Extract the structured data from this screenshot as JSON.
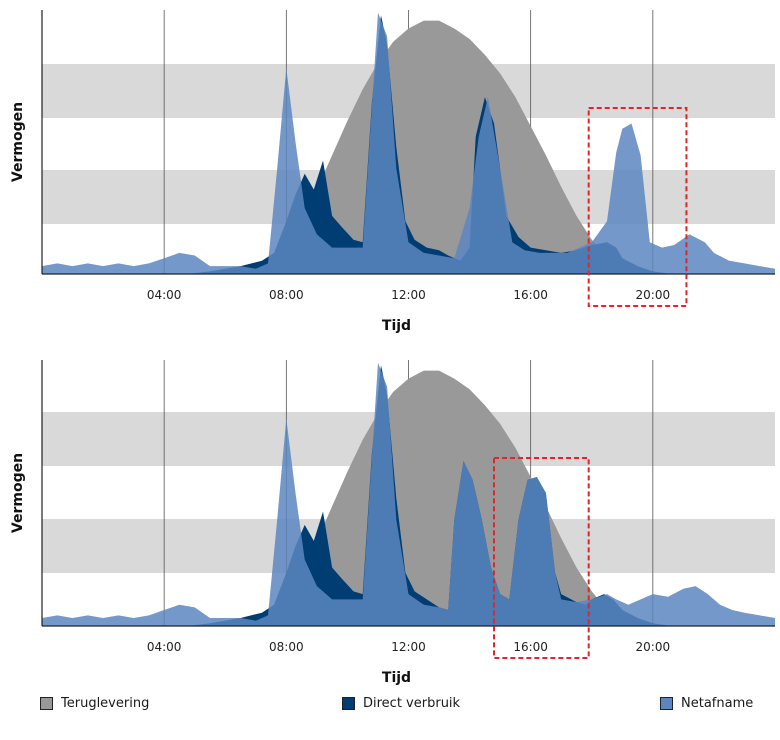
{
  "colors": {
    "background": "#ffffff",
    "band": "#d9d9d9",
    "terug": "#999999",
    "direct": "#003d73",
    "net": "#5b86bf",
    "highlight": "#e0262c"
  },
  "legend": [
    {
      "label": "Teruglevering",
      "color": "#999999"
    },
    {
      "label": "Direct verbruik",
      "color": "#003d73"
    },
    {
      "label": "Netafname",
      "color": "#5b86bf"
    }
  ],
  "chart_data": [
    {
      "type": "area",
      "xlabel": "Tijd",
      "ylabel": "Vermogen",
      "x_unit": "hours",
      "xlim": [
        0,
        24
      ],
      "ylim": [
        0,
        100
      ],
      "x_ticks": [
        "04:00",
        "08:00",
        "12:00",
        "16:00",
        "20:00"
      ],
      "x_tick_values": [
        4,
        8,
        12,
        16,
        20
      ],
      "grid": "vertical lines at ticks, alternating horizontal grey bands",
      "highlight_hours": [
        17.9,
        21.1
      ],
      "series": [
        {
          "name": "Teruglevering",
          "color": "#999999",
          "points": [
            [
              7.0,
              0
            ],
            [
              7.6,
              3
            ],
            [
              8.0,
              9
            ],
            [
              8.5,
              20
            ],
            [
              9.0,
              32
            ],
            [
              9.5,
              45
            ],
            [
              10.0,
              58
            ],
            [
              10.5,
              70
            ],
            [
              11.0,
              80
            ],
            [
              11.5,
              88
            ],
            [
              12.0,
              93
            ],
            [
              12.5,
              96
            ],
            [
              13.0,
              96
            ],
            [
              13.5,
              93
            ],
            [
              14.0,
              89
            ],
            [
              14.5,
              83
            ],
            [
              15.0,
              76
            ],
            [
              15.5,
              67
            ],
            [
              16.0,
              56
            ],
            [
              16.5,
              45
            ],
            [
              17.0,
              33
            ],
            [
              17.5,
              22
            ],
            [
              18.0,
              13
            ],
            [
              18.5,
              6
            ],
            [
              19.0,
              2
            ],
            [
              19.5,
              0
            ]
          ]
        },
        {
          "name": "Direct verbruik",
          "color": "#003d73",
          "points": [
            [
              4.8,
              0
            ],
            [
              5.5,
              1
            ],
            [
              6.5,
              3
            ],
            [
              7.2,
              5
            ],
            [
              7.6,
              8
            ],
            [
              8.0,
              20
            ],
            [
              8.3,
              30
            ],
            [
              8.6,
              38
            ],
            [
              8.9,
              32
            ],
            [
              9.2,
              43
            ],
            [
              9.5,
              22
            ],
            [
              9.8,
              18
            ],
            [
              10.2,
              13
            ],
            [
              10.5,
              12
            ],
            [
              10.8,
              65
            ],
            [
              11.1,
              98
            ],
            [
              11.3,
              87
            ],
            [
              11.6,
              48
            ],
            [
              11.9,
              20
            ],
            [
              12.2,
              13
            ],
            [
              12.6,
              10
            ],
            [
              13.0,
              9
            ],
            [
              13.3,
              7
            ],
            [
              13.7,
              5
            ],
            [
              14.0,
              10
            ],
            [
              14.2,
              52
            ],
            [
              14.5,
              67
            ],
            [
              14.8,
              57
            ],
            [
              15.0,
              40
            ],
            [
              15.2,
              22
            ],
            [
              15.6,
              14
            ],
            [
              16.0,
              10
            ],
            [
              16.5,
              9
            ],
            [
              17.0,
              8
            ],
            [
              17.5,
              9
            ],
            [
              18.0,
              11
            ],
            [
              18.5,
              12
            ],
            [
              18.8,
              10
            ],
            [
              19.0,
              6
            ],
            [
              19.5,
              3
            ],
            [
              20.0,
              1
            ],
            [
              20.6,
              0
            ]
          ]
        },
        {
          "name": "Netafname",
          "color": "#5b86bf",
          "points": [
            [
              0,
              3
            ],
            [
              0.5,
              4
            ],
            [
              1.0,
              3
            ],
            [
              1.5,
              4
            ],
            [
              2.0,
              3
            ],
            [
              2.5,
              4
            ],
            [
              3.0,
              3
            ],
            [
              3.5,
              4
            ],
            [
              4.0,
              6
            ],
            [
              4.5,
              8
            ],
            [
              5.0,
              7
            ],
            [
              5.5,
              3
            ],
            [
              6.0,
              3
            ],
            [
              6.5,
              3
            ],
            [
              7.0,
              2
            ],
            [
              7.4,
              4
            ],
            [
              7.7,
              40
            ],
            [
              8.0,
              78
            ],
            [
              8.3,
              50
            ],
            [
              8.6,
              25
            ],
            [
              9.0,
              15
            ],
            [
              9.5,
              10
            ],
            [
              10.0,
              10
            ],
            [
              10.5,
              10
            ],
            [
              11.0,
              99
            ],
            [
              11.3,
              90
            ],
            [
              11.6,
              40
            ],
            [
              12.0,
              12
            ],
            [
              12.5,
              8
            ],
            [
              13.0,
              7
            ],
            [
              13.5,
              6
            ],
            [
              14.0,
              25
            ],
            [
              14.3,
              52
            ],
            [
              14.6,
              67
            ],
            [
              15.0,
              40
            ],
            [
              15.4,
              12
            ],
            [
              15.8,
              9
            ],
            [
              16.3,
              8
            ],
            [
              16.8,
              8
            ],
            [
              17.2,
              8
            ],
            [
              17.6,
              10
            ],
            [
              18.0,
              12
            ],
            [
              18.5,
              20
            ],
            [
              18.8,
              46
            ],
            [
              19.0,
              55
            ],
            [
              19.3,
              57
            ],
            [
              19.6,
              45
            ],
            [
              19.9,
              12
            ],
            [
              20.3,
              10
            ],
            [
              20.7,
              11
            ],
            [
              21.2,
              15
            ],
            [
              21.7,
              12
            ],
            [
              22.0,
              8
            ],
            [
              22.5,
              5
            ],
            [
              23.0,
              4
            ],
            [
              23.5,
              3
            ],
            [
              24.0,
              2
            ]
          ]
        }
      ]
    },
    {
      "type": "area",
      "xlabel": "Tijd",
      "ylabel": "Vermogen",
      "x_unit": "hours",
      "xlim": [
        0,
        24
      ],
      "ylim": [
        0,
        100
      ],
      "x_ticks": [
        "04:00",
        "08:00",
        "12:00",
        "16:00",
        "20:00"
      ],
      "x_tick_values": [
        4,
        8,
        12,
        16,
        20
      ],
      "grid": "vertical lines at ticks, alternating horizontal grey bands",
      "highlight_hours": [
        14.8,
        17.9
      ],
      "series": [
        {
          "name": "Teruglevering",
          "color": "#999999",
          "points": [
            [
              7.0,
              0
            ],
            [
              7.6,
              3
            ],
            [
              8.0,
              9
            ],
            [
              8.5,
              20
            ],
            [
              9.0,
              32
            ],
            [
              9.5,
              45
            ],
            [
              10.0,
              58
            ],
            [
              10.5,
              70
            ],
            [
              11.0,
              80
            ],
            [
              11.5,
              88
            ],
            [
              12.0,
              93
            ],
            [
              12.5,
              96
            ],
            [
              13.0,
              96
            ],
            [
              13.5,
              93
            ],
            [
              14.0,
              89
            ],
            [
              14.5,
              83
            ],
            [
              15.0,
              76
            ],
            [
              15.5,
              67
            ],
            [
              16.0,
              56
            ],
            [
              16.5,
              45
            ],
            [
              17.0,
              33
            ],
            [
              17.5,
              22
            ],
            [
              18.0,
              13
            ],
            [
              18.5,
              6
            ],
            [
              19.0,
              2
            ],
            [
              19.5,
              0
            ]
          ]
        },
        {
          "name": "Direct verbruik",
          "color": "#003d73",
          "points": [
            [
              4.8,
              0
            ],
            [
              5.5,
              1
            ],
            [
              6.5,
              3
            ],
            [
              7.2,
              5
            ],
            [
              7.6,
              8
            ],
            [
              8.0,
              20
            ],
            [
              8.3,
              30
            ],
            [
              8.6,
              38
            ],
            [
              8.9,
              32
            ],
            [
              9.2,
              43
            ],
            [
              9.5,
              22
            ],
            [
              9.8,
              18
            ],
            [
              10.2,
              13
            ],
            [
              10.5,
              12
            ],
            [
              10.8,
              65
            ],
            [
              11.1,
              98
            ],
            [
              11.3,
              87
            ],
            [
              11.6,
              48
            ],
            [
              11.9,
              20
            ],
            [
              12.2,
              13
            ],
            [
              12.6,
              10
            ],
            [
              13.0,
              7
            ],
            [
              13.3,
              6
            ],
            [
              13.5,
              40
            ],
            [
              13.8,
              62
            ],
            [
              14.1,
              55
            ],
            [
              14.4,
              40
            ],
            [
              14.7,
              22
            ],
            [
              15.0,
              12
            ],
            [
              15.3,
              10
            ],
            [
              15.6,
              40
            ],
            [
              15.9,
              55
            ],
            [
              16.2,
              56
            ],
            [
              16.5,
              50
            ],
            [
              16.8,
              20
            ],
            [
              17.0,
              12
            ],
            [
              17.5,
              9
            ],
            [
              17.8,
              8
            ],
            [
              18.0,
              10
            ],
            [
              18.4,
              12
            ],
            [
              18.7,
              10
            ],
            [
              19.0,
              6
            ],
            [
              19.5,
              3
            ],
            [
              20.0,
              1
            ],
            [
              20.6,
              0
            ]
          ]
        },
        {
          "name": "Netafname",
          "color": "#5b86bf",
          "points": [
            [
              0,
              3
            ],
            [
              0.5,
              4
            ],
            [
              1.0,
              3
            ],
            [
              1.5,
              4
            ],
            [
              2.0,
              3
            ],
            [
              2.5,
              4
            ],
            [
              3.0,
              3
            ],
            [
              3.5,
              4
            ],
            [
              4.0,
              6
            ],
            [
              4.5,
              8
            ],
            [
              5.0,
              7
            ],
            [
              5.5,
              3
            ],
            [
              6.0,
              3
            ],
            [
              6.5,
              3
            ],
            [
              7.0,
              2
            ],
            [
              7.4,
              4
            ],
            [
              7.7,
              40
            ],
            [
              8.0,
              78
            ],
            [
              8.3,
              50
            ],
            [
              8.6,
              25
            ],
            [
              9.0,
              15
            ],
            [
              9.5,
              10
            ],
            [
              10.0,
              10
            ],
            [
              10.5,
              10
            ],
            [
              11.0,
              99
            ],
            [
              11.3,
              90
            ],
            [
              11.6,
              40
            ],
            [
              12.0,
              12
            ],
            [
              12.5,
              8
            ],
            [
              13.0,
              7
            ],
            [
              13.3,
              6
            ],
            [
              13.5,
              40
            ],
            [
              13.8,
              62
            ],
            [
              14.1,
              55
            ],
            [
              14.4,
              40
            ],
            [
              14.7,
              22
            ],
            [
              15.0,
              12
            ],
            [
              15.3,
              10
            ],
            [
              15.6,
              40
            ],
            [
              15.9,
              55
            ],
            [
              16.2,
              56
            ],
            [
              16.5,
              50
            ],
            [
              16.8,
              20
            ],
            [
              17.0,
              10
            ],
            [
              17.5,
              9
            ],
            [
              18.0,
              10
            ],
            [
              18.5,
              12
            ],
            [
              18.8,
              10
            ],
            [
              19.2,
              8
            ],
            [
              19.6,
              10
            ],
            [
              20.0,
              12
            ],
            [
              20.5,
              11
            ],
            [
              21.0,
              14
            ],
            [
              21.4,
              15
            ],
            [
              21.8,
              12
            ],
            [
              22.2,
              8
            ],
            [
              22.6,
              6
            ],
            [
              23.0,
              5
            ],
            [
              23.5,
              4
            ],
            [
              24.0,
              3
            ]
          ]
        }
      ]
    }
  ]
}
